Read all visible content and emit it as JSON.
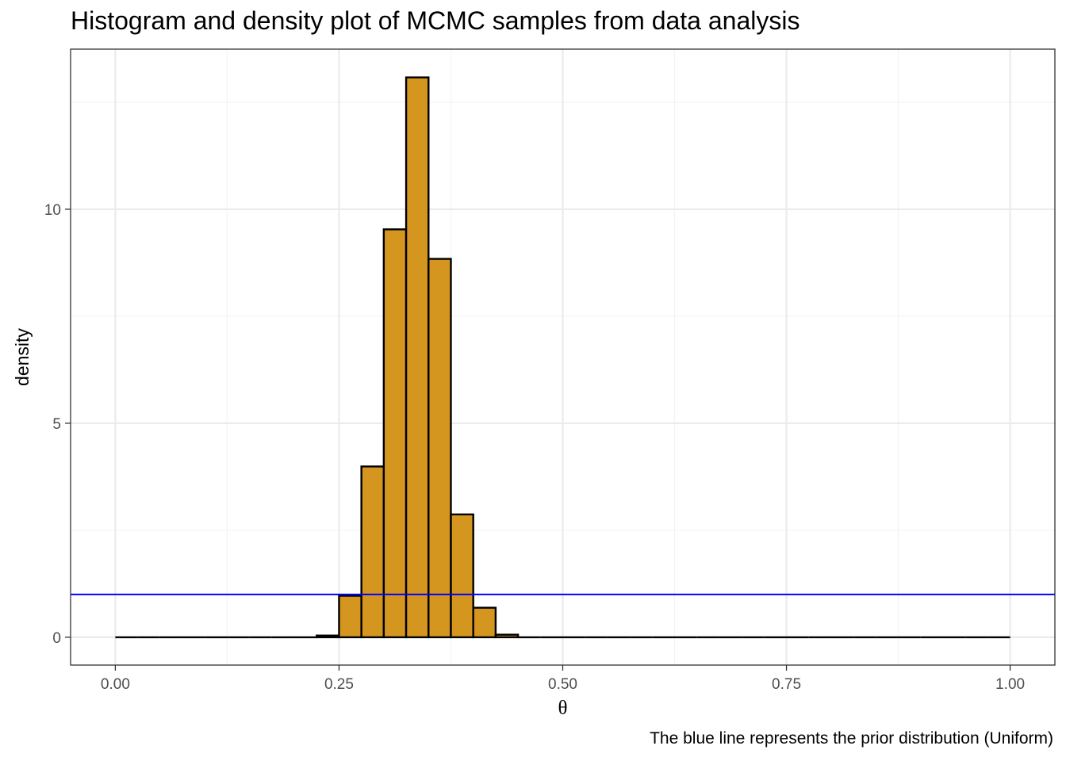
{
  "chart_data": {
    "type": "bar",
    "title": "Histogram and density plot of MCMC samples from data analysis",
    "caption": "The blue line represents the prior distribution (Uniform)",
    "xlabel": "θ",
    "ylabel": "density",
    "xlim": [
      -0.05,
      1.05
    ],
    "ylim": [
      -0.65,
      13.74
    ],
    "x_ticks": [
      0.0,
      0.25,
      0.5,
      0.75,
      1.0
    ],
    "x_tick_labels": [
      "0.00",
      "0.25",
      "0.50",
      "0.75",
      "1.00"
    ],
    "y_ticks": [
      0,
      5,
      10
    ],
    "y_tick_labels": [
      "0",
      "5",
      "10"
    ],
    "grid": true,
    "series": [
      {
        "kind": "histogram",
        "bin_width": 0.025,
        "bins": [
          {
            "x0": 0.0,
            "x1": 0.025,
            "density": 0
          },
          {
            "x0": 0.025,
            "x1": 0.05,
            "density": 0
          },
          {
            "x0": 0.05,
            "x1": 0.075,
            "density": 0
          },
          {
            "x0": 0.075,
            "x1": 0.1,
            "density": 0
          },
          {
            "x0": 0.1,
            "x1": 0.125,
            "density": 0
          },
          {
            "x0": 0.125,
            "x1": 0.15,
            "density": 0
          },
          {
            "x0": 0.15,
            "x1": 0.175,
            "density": 0
          },
          {
            "x0": 0.175,
            "x1": 0.2,
            "density": 0
          },
          {
            "x0": 0.2,
            "x1": 0.225,
            "density": 0
          },
          {
            "x0": 0.225,
            "x1": 0.25,
            "density": 0.04
          },
          {
            "x0": 0.25,
            "x1": 0.275,
            "density": 0.97
          },
          {
            "x0": 0.275,
            "x1": 0.3,
            "density": 3.99
          },
          {
            "x0": 0.3,
            "x1": 0.325,
            "density": 9.53
          },
          {
            "x0": 0.325,
            "x1": 0.35,
            "density": 13.08
          },
          {
            "x0": 0.35,
            "x1": 0.375,
            "density": 8.84
          },
          {
            "x0": 0.375,
            "x1": 0.4,
            "density": 2.87
          },
          {
            "x0": 0.4,
            "x1": 0.425,
            "density": 0.69
          },
          {
            "x0": 0.425,
            "x1": 0.45,
            "density": 0.06
          },
          {
            "x0": 0.45,
            "x1": 0.475,
            "density": 0
          },
          {
            "x0": 0.475,
            "x1": 0.5,
            "density": 0
          },
          {
            "x0": 0.5,
            "x1": 0.525,
            "density": 0
          },
          {
            "x0": 0.525,
            "x1": 0.55,
            "density": 0
          },
          {
            "x0": 0.55,
            "x1": 0.575,
            "density": 0
          },
          {
            "x0": 0.575,
            "x1": 0.6,
            "density": 0
          },
          {
            "x0": 0.6,
            "x1": 0.625,
            "density": 0
          },
          {
            "x0": 0.625,
            "x1": 0.65,
            "density": 0
          },
          {
            "x0": 0.65,
            "x1": 0.675,
            "density": 0
          },
          {
            "x0": 0.675,
            "x1": 0.7,
            "density": 0
          },
          {
            "x0": 0.7,
            "x1": 0.725,
            "density": 0
          },
          {
            "x0": 0.725,
            "x1": 0.75,
            "density": 0
          },
          {
            "x0": 0.75,
            "x1": 0.775,
            "density": 0
          },
          {
            "x0": 0.775,
            "x1": 0.8,
            "density": 0
          },
          {
            "x0": 0.8,
            "x1": 0.825,
            "density": 0
          },
          {
            "x0": 0.825,
            "x1": 0.85,
            "density": 0
          },
          {
            "x0": 0.85,
            "x1": 0.875,
            "density": 0
          },
          {
            "x0": 0.875,
            "x1": 0.9,
            "density": 0
          },
          {
            "x0": 0.9,
            "x1": 0.925,
            "density": 0
          },
          {
            "x0": 0.925,
            "x1": 0.95,
            "density": 0
          },
          {
            "x0": 0.95,
            "x1": 0.975,
            "density": 0
          },
          {
            "x0": 0.975,
            "x1": 1.0,
            "density": 0
          }
        ],
        "fill": "#D4961E",
        "stroke": "#000000"
      },
      {
        "kind": "hline",
        "y": 1,
        "color": "#0000FF"
      }
    ],
    "colors": {
      "histogram_fill": "#D4961E",
      "prior_line": "#0000FF",
      "grid_major": "#EBEBEB",
      "grid_minor": "#F3F3F3",
      "panel_border": "#333333",
      "tick_label": "#4D4D4D"
    }
  }
}
